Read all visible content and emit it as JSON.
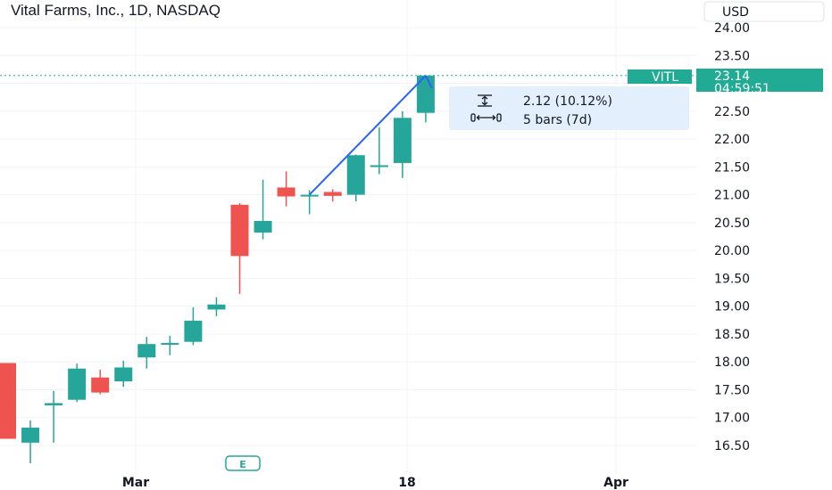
{
  "header": {
    "title": "Vital Farms, Inc., 1D, NASDAQ",
    "currency_button": "USD"
  },
  "price_tag": {
    "symbol": "VITL",
    "price": "23.14",
    "countdown": "04:59:51"
  },
  "measure": {
    "price_change": "2.12 (10.12%)",
    "bars": "5 bars (7d)"
  },
  "earnings_marker": "E",
  "colors": {
    "up": "#26a69a",
    "down": "#ef5350",
    "tag": "#22ab94",
    "measure_line": "#2962ff",
    "measure_box": "#e3effd",
    "grid": "#f0f3fa"
  },
  "chart_data": {
    "type": "candlestick",
    "title": "Vital Farms, Inc., 1D, NASDAQ",
    "currency": "USD",
    "y_axis_ticks": [
      "24.00",
      "23.50",
      "23.00",
      "22.50",
      "22.00",
      "21.50",
      "21.00",
      "20.50",
      "20.00",
      "19.50",
      "19.00",
      "18.50",
      "18.00",
      "17.50",
      "17.00",
      "16.50"
    ],
    "x_axis_labels": [
      "Mar",
      "18",
      "Apr"
    ],
    "ylim": [
      16.1,
      24.25
    ],
    "last_price": 23.14,
    "candles": [
      {
        "o": 17.98,
        "h": 17.98,
        "l": 16.62,
        "c": 16.62
      },
      {
        "o": 16.55,
        "h": 16.95,
        "l": 16.18,
        "c": 16.82
      },
      {
        "o": 17.22,
        "h": 17.48,
        "l": 16.55,
        "c": 17.26
      },
      {
        "o": 17.32,
        "h": 17.97,
        "l": 17.28,
        "c": 17.88
      },
      {
        "o": 17.72,
        "h": 17.86,
        "l": 17.42,
        "c": 17.45
      },
      {
        "o": 17.65,
        "h": 18.02,
        "l": 17.55,
        "c": 17.9
      },
      {
        "o": 18.08,
        "h": 18.45,
        "l": 17.88,
        "c": 18.32
      },
      {
        "o": 18.32,
        "h": 18.47,
        "l": 18.12,
        "c": 18.34
      },
      {
        "o": 18.36,
        "h": 18.98,
        "l": 18.3,
        "c": 18.74
      },
      {
        "o": 18.94,
        "h": 19.16,
        "l": 18.82,
        "c": 19.03
      },
      {
        "o": 20.82,
        "h": 20.85,
        "l": 19.22,
        "c": 19.9
      },
      {
        "o": 20.32,
        "h": 21.27,
        "l": 20.2,
        "c": 20.53
      },
      {
        "o": 21.13,
        "h": 21.42,
        "l": 20.79,
        "c": 20.97
      },
      {
        "o": 20.98,
        "h": 21.08,
        "l": 20.65,
        "c": 21.0
      },
      {
        "o": 21.05,
        "h": 21.1,
        "l": 20.88,
        "c": 20.98
      },
      {
        "o": 21.0,
        "h": 21.72,
        "l": 20.88,
        "c": 21.71
      },
      {
        "o": 21.5,
        "h": 22.21,
        "l": 21.37,
        "c": 21.53
      },
      {
        "o": 21.57,
        "h": 22.5,
        "l": 21.3,
        "c": 22.38
      },
      {
        "o": 22.47,
        "h": 23.14,
        "l": 22.3,
        "c": 23.14
      }
    ]
  }
}
